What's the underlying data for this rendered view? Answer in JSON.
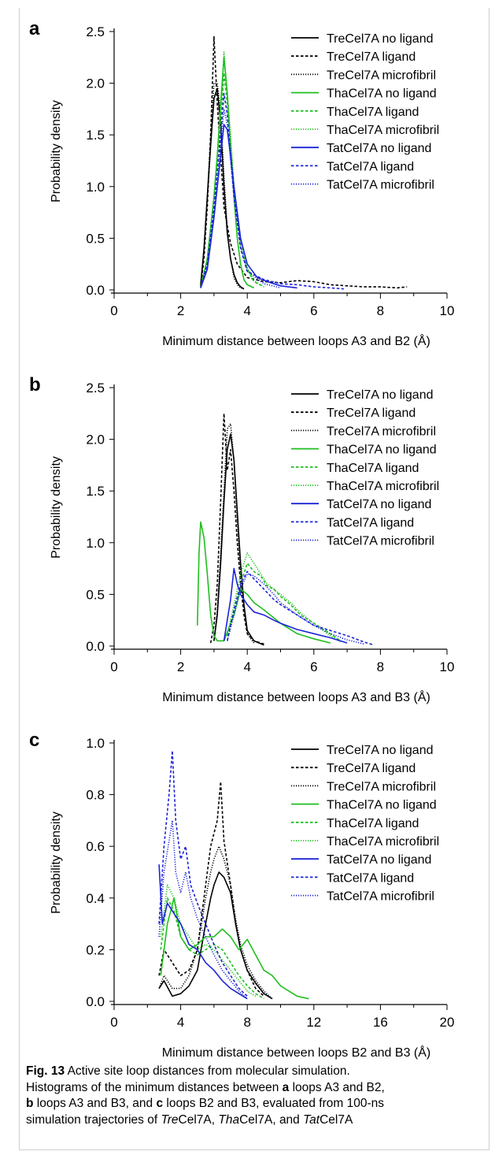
{
  "colors": {
    "tre": "#000000",
    "tha": "#1fbf1f",
    "tat": "#1c23d6"
  },
  "legend_labels": [
    "TreCel7A no ligand",
    "TreCel7A ligand",
    "TreCel7A microfibril",
    "ThaCel7A no ligand",
    "ThaCel7A ligand",
    "ThaCel7A microfibril",
    "TatCel7A no ligand",
    "TatCel7A ligand",
    "TatCel7A microfibril"
  ],
  "chart_data": [
    {
      "panel": "a",
      "type": "line",
      "xlabel": "Minimum distance between loops A3 and B2 (Å)",
      "ylabel": "Probability density",
      "xlim": [
        0,
        10
      ],
      "ylim": [
        0,
        2.5
      ],
      "xticks": [
        "0",
        "2",
        "4",
        "6",
        "8",
        "10"
      ],
      "yticks": [
        "0.0",
        "0.5",
        "1.0",
        "1.5",
        "2.0",
        "2.5"
      ],
      "legend": "top-right",
      "series": [
        {
          "name": "TreCel7A no ligand",
          "x": [
            2.6,
            2.7,
            2.8,
            2.9,
            3.0,
            3.1,
            3.2,
            3.3,
            3.4,
            3.5,
            3.6,
            3.7,
            3.8,
            3.9
          ],
          "y": [
            0.05,
            0.4,
            0.9,
            1.4,
            1.85,
            1.95,
            1.6,
            1.0,
            0.55,
            0.3,
            0.15,
            0.07,
            0.03,
            0.01
          ]
        },
        {
          "name": "TreCel7A ligand",
          "x": [
            2.6,
            2.7,
            2.8,
            2.9,
            3.0,
            3.1,
            3.2,
            3.3,
            3.5,
            3.7,
            4.0,
            4.5,
            5.0,
            5.5,
            6.0,
            6.5,
            7.0,
            7.5,
            8.0,
            8.5,
            8.8
          ],
          "y": [
            0.03,
            0.3,
            0.8,
            1.5,
            2.45,
            1.8,
            1.3,
            0.8,
            0.45,
            0.25,
            0.12,
            0.08,
            0.07,
            0.09,
            0.08,
            0.05,
            0.04,
            0.03,
            0.03,
            0.02,
            0.03
          ]
        },
        {
          "name": "TreCel7A microfibril",
          "x": [
            2.6,
            2.7,
            2.8,
            2.9,
            3.0,
            3.1,
            3.2,
            3.3,
            3.4,
            3.5,
            3.6,
            3.7,
            3.8,
            3.9
          ],
          "y": [
            0.05,
            0.35,
            0.9,
            1.5,
            2.0,
            2.0,
            1.7,
            1.1,
            0.6,
            0.3,
            0.12,
            0.05,
            0.02,
            0.01
          ]
        },
        {
          "name": "ThaCel7A no ligand",
          "x": [
            2.6,
            2.8,
            3.0,
            3.1,
            3.2,
            3.3,
            3.4,
            3.5,
            3.6,
            3.7,
            3.8,
            3.9,
            4.0,
            4.2
          ],
          "y": [
            0.02,
            0.3,
            0.9,
            1.3,
            1.8,
            2.25,
            1.9,
            1.4,
            0.9,
            0.5,
            0.25,
            0.1,
            0.05,
            0.02
          ]
        },
        {
          "name": "ThaCel7A ligand",
          "x": [
            2.6,
            2.8,
            3.0,
            3.2,
            3.3,
            3.4,
            3.5,
            3.6,
            3.8,
            4.0,
            4.2,
            4.5
          ],
          "y": [
            0.02,
            0.25,
            0.8,
            1.6,
            2.1,
            1.8,
            1.4,
            1.0,
            0.45,
            0.2,
            0.08,
            0.03
          ]
        },
        {
          "name": "ThaCel7A microfibril",
          "x": [
            2.6,
            2.8,
            3.0,
            3.2,
            3.3,
            3.4,
            3.5,
            3.6,
            3.8,
            4.0,
            4.2,
            4.5
          ],
          "y": [
            0.02,
            0.3,
            0.9,
            1.7,
            2.3,
            1.9,
            1.5,
            1.0,
            0.5,
            0.22,
            0.09,
            0.03
          ]
        },
        {
          "name": "TatCel7A no ligand",
          "x": [
            2.6,
            2.8,
            3.0,
            3.2,
            3.3,
            3.4,
            3.5,
            3.6,
            3.8,
            4.0,
            4.3,
            4.6,
            5.0,
            5.5
          ],
          "y": [
            0.02,
            0.2,
            0.7,
            1.3,
            1.6,
            1.55,
            1.3,
            1.0,
            0.5,
            0.25,
            0.12,
            0.08,
            0.04,
            0.02
          ]
        },
        {
          "name": "TatCel7A ligand",
          "x": [
            2.6,
            2.8,
            3.0,
            3.2,
            3.3,
            3.4,
            3.5,
            3.6,
            3.8,
            4.0,
            4.5,
            5.0,
            5.5,
            6.0,
            6.5,
            6.9
          ],
          "y": [
            0.02,
            0.25,
            0.8,
            1.5,
            1.9,
            1.7,
            1.3,
            0.9,
            0.4,
            0.18,
            0.1,
            0.06,
            0.05,
            0.03,
            0.02,
            0.01
          ]
        },
        {
          "name": "TatCel7A microfibril",
          "x": [
            2.6,
            2.8,
            3.0,
            3.2,
            3.3,
            3.4,
            3.5,
            3.6,
            3.8,
            4.0,
            4.5,
            5.0
          ],
          "y": [
            0.02,
            0.25,
            0.75,
            1.4,
            1.75,
            1.6,
            1.25,
            0.9,
            0.42,
            0.18,
            0.06,
            0.02
          ]
        }
      ]
    },
    {
      "panel": "b",
      "type": "line",
      "xlabel": "Minimum distance between loops A3 and B3 (Å)",
      "ylabel": "Probability density",
      "xlim": [
        0,
        10
      ],
      "ylim": [
        0,
        2.5
      ],
      "xticks": [
        "0",
        "2",
        "4",
        "6",
        "8",
        "10"
      ],
      "yticks": [
        "0.0",
        "0.5",
        "1.0",
        "1.5",
        "2.0",
        "2.5"
      ],
      "legend": "top-right",
      "series": [
        {
          "name": "TreCel7A no ligand",
          "x": [
            3.0,
            3.1,
            3.2,
            3.3,
            3.4,
            3.5,
            3.6,
            3.7,
            3.8,
            3.9,
            4.0,
            4.2,
            4.5
          ],
          "y": [
            0.05,
            0.3,
            0.8,
            1.4,
            1.9,
            2.05,
            1.8,
            1.3,
            0.8,
            0.4,
            0.15,
            0.05,
            0.01
          ]
        },
        {
          "name": "TreCel7A ligand",
          "x": [
            2.9,
            3.0,
            3.1,
            3.2,
            3.3,
            3.4,
            3.5,
            3.6,
            3.7,
            3.8,
            3.9,
            4.0,
            4.2,
            4.5
          ],
          "y": [
            0.03,
            0.2,
            0.6,
            1.4,
            2.25,
            1.7,
            1.9,
            1.5,
            1.0,
            0.6,
            0.3,
            0.12,
            0.05,
            0.02
          ]
        },
        {
          "name": "TreCel7A microfibril",
          "x": [
            3.0,
            3.1,
            3.2,
            3.3,
            3.4,
            3.5,
            3.6,
            3.7,
            3.8,
            3.9,
            4.0,
            4.2
          ],
          "y": [
            0.05,
            0.35,
            0.9,
            1.5,
            2.1,
            2.15,
            1.8,
            1.2,
            0.7,
            0.35,
            0.12,
            0.03
          ]
        },
        {
          "name": "ThaCel7A no ligand",
          "x": [
            2.5,
            2.55,
            2.6,
            2.7,
            2.8,
            2.9,
            3.0,
            3.1,
            3.3,
            3.6,
            3.8,
            4.0,
            4.2,
            4.5,
            5.0,
            5.5,
            6.0,
            6.5
          ],
          "y": [
            0.2,
            0.9,
            1.2,
            1.05,
            0.7,
            0.3,
            0.1,
            0.05,
            0.05,
            0.3,
            0.55,
            0.5,
            0.42,
            0.35,
            0.22,
            0.12,
            0.07,
            0.03
          ]
        },
        {
          "name": "ThaCel7A ligand",
          "x": [
            3.4,
            3.6,
            3.8,
            4.0,
            4.2,
            4.4,
            4.6,
            4.8,
            5.0,
            5.3,
            5.6,
            6.0,
            6.4,
            6.8
          ],
          "y": [
            0.1,
            0.35,
            0.6,
            0.8,
            0.72,
            0.68,
            0.58,
            0.55,
            0.48,
            0.4,
            0.3,
            0.22,
            0.14,
            0.05
          ]
        },
        {
          "name": "ThaCel7A microfibril",
          "x": [
            3.4,
            3.6,
            3.8,
            4.0,
            4.2,
            4.4,
            4.6,
            4.8,
            5.0,
            5.3,
            5.6,
            6.0,
            6.4,
            6.8
          ],
          "y": [
            0.1,
            0.4,
            0.7,
            0.9,
            0.8,
            0.7,
            0.6,
            0.55,
            0.5,
            0.42,
            0.32,
            0.22,
            0.12,
            0.04
          ]
        },
        {
          "name": "TatCel7A no ligand",
          "x": [
            3.3,
            3.5,
            3.6,
            3.7,
            3.8,
            4.0,
            4.2,
            4.5,
            4.8,
            5.0,
            5.5,
            6.0,
            6.5,
            7.0
          ],
          "y": [
            0.05,
            0.45,
            0.75,
            0.6,
            0.5,
            0.4,
            0.33,
            0.3,
            0.25,
            0.22,
            0.16,
            0.12,
            0.08,
            0.03
          ]
        },
        {
          "name": "TatCel7A ligand",
          "x": [
            3.4,
            3.6,
            3.8,
            4.0,
            4.2,
            4.5,
            4.8,
            5.0,
            5.5,
            6.0,
            6.5,
            7.0,
            7.5,
            7.8
          ],
          "y": [
            0.05,
            0.35,
            0.6,
            0.72,
            0.65,
            0.55,
            0.45,
            0.4,
            0.3,
            0.2,
            0.15,
            0.1,
            0.04,
            0.01
          ]
        },
        {
          "name": "TatCel7A microfibril",
          "x": [
            3.4,
            3.6,
            3.8,
            4.0,
            4.2,
            4.5,
            4.8,
            5.0,
            5.5,
            6.0,
            6.5,
            7.0,
            7.5
          ],
          "y": [
            0.05,
            0.3,
            0.55,
            0.7,
            0.68,
            0.6,
            0.5,
            0.42,
            0.3,
            0.2,
            0.12,
            0.06,
            0.02
          ]
        }
      ]
    },
    {
      "panel": "c",
      "type": "line",
      "xlabel": "Minimum distance between loops B2 and B3 (Å)",
      "ylabel": "Probability density",
      "xlim": [
        0,
        20
      ],
      "ylim": [
        0,
        1.0
      ],
      "xticks": [
        "0",
        "4",
        "8",
        "12",
        "16",
        "20"
      ],
      "yticks": [
        "0.0",
        "0.2",
        "0.4",
        "0.6",
        "0.8",
        "1.0"
      ],
      "legend": "top-right",
      "series": [
        {
          "name": "TreCel7A no ligand",
          "x": [
            2.7,
            3.0,
            3.5,
            4.0,
            4.5,
            5.0,
            5.5,
            5.8,
            6.0,
            6.3,
            6.6,
            7.0,
            7.3,
            7.6,
            8.0,
            8.5,
            9.0,
            9.5
          ],
          "y": [
            0.05,
            0.08,
            0.02,
            0.03,
            0.06,
            0.12,
            0.3,
            0.4,
            0.45,
            0.5,
            0.48,
            0.42,
            0.3,
            0.2,
            0.12,
            0.07,
            0.03,
            0.01
          ]
        },
        {
          "name": "TreCel7A ligand",
          "x": [
            2.7,
            3.0,
            3.5,
            4.0,
            4.5,
            5.0,
            5.5,
            5.8,
            6.0,
            6.2,
            6.4,
            6.6,
            7.0,
            7.3,
            7.6,
            8.0,
            8.5,
            9.0
          ],
          "y": [
            0.1,
            0.2,
            0.15,
            0.1,
            0.12,
            0.2,
            0.45,
            0.6,
            0.65,
            0.7,
            0.85,
            0.62,
            0.45,
            0.3,
            0.2,
            0.12,
            0.05,
            0.02
          ]
        },
        {
          "name": "TreCel7A microfibril",
          "x": [
            2.7,
            3.0,
            3.5,
            4.0,
            4.5,
            5.0,
            5.5,
            5.8,
            6.0,
            6.3,
            6.6,
            7.0,
            7.3,
            7.6,
            8.0,
            8.5,
            9.0,
            9.5
          ],
          "y": [
            0.05,
            0.1,
            0.05,
            0.05,
            0.1,
            0.2,
            0.4,
            0.5,
            0.55,
            0.6,
            0.55,
            0.45,
            0.32,
            0.22,
            0.14,
            0.08,
            0.04,
            0.01
          ]
        },
        {
          "name": "ThaCel7A no ligand",
          "x": [
            2.8,
            3.2,
            3.6,
            4.0,
            4.5,
            5.0,
            5.5,
            6.0,
            6.5,
            7.0,
            7.5,
            8.0,
            8.5,
            9.0,
            9.5,
            10.0,
            10.5,
            11.0,
            11.7
          ],
          "y": [
            0.1,
            0.3,
            0.4,
            0.25,
            0.2,
            0.22,
            0.25,
            0.25,
            0.28,
            0.25,
            0.2,
            0.24,
            0.18,
            0.12,
            0.1,
            0.06,
            0.04,
            0.02,
            0.01
          ]
        },
        {
          "name": "ThaCel7A ligand",
          "x": [
            2.8,
            3.2,
            3.6,
            4.0,
            4.5,
            5.0,
            5.5,
            6.0,
            6.5,
            7.0,
            7.5,
            8.0,
            8.5,
            9.0
          ],
          "y": [
            0.2,
            0.4,
            0.35,
            0.25,
            0.2,
            0.18,
            0.2,
            0.22,
            0.2,
            0.15,
            0.1,
            0.06,
            0.03,
            0.01
          ]
        },
        {
          "name": "ThaCel7A microfibril",
          "x": [
            2.8,
            3.2,
            3.6,
            4.0,
            4.5,
            5.0,
            5.5,
            6.0,
            6.5,
            7.0,
            7.5,
            8.0,
            8.5
          ],
          "y": [
            0.25,
            0.45,
            0.4,
            0.3,
            0.25,
            0.2,
            0.22,
            0.2,
            0.16,
            0.12,
            0.08,
            0.04,
            0.02
          ]
        },
        {
          "name": "TatCel7A no ligand",
          "x": [
            2.7,
            2.9,
            3.2,
            3.5,
            4.0,
            4.5,
            5.0,
            5.5,
            6.0,
            6.5,
            7.0,
            7.5,
            8.0
          ],
          "y": [
            0.53,
            0.3,
            0.38,
            0.35,
            0.3,
            0.22,
            0.2,
            0.15,
            0.12,
            0.08,
            0.05,
            0.03,
            0.01
          ]
        },
        {
          "name": "TatCel7A ligand",
          "x": [
            2.7,
            3.0,
            3.3,
            3.5,
            3.7,
            4.0,
            4.3,
            4.6,
            5.0,
            5.5,
            6.0,
            6.5,
            7.0,
            7.5,
            8.0
          ],
          "y": [
            0.3,
            0.6,
            0.8,
            0.97,
            0.7,
            0.55,
            0.6,
            0.45,
            0.38,
            0.3,
            0.22,
            0.15,
            0.1,
            0.05,
            0.02
          ]
        },
        {
          "name": "TatCel7A microfibril",
          "x": [
            2.7,
            3.0,
            3.3,
            3.5,
            3.7,
            4.0,
            4.3,
            4.6,
            5.0,
            5.5,
            6.0,
            6.5,
            7.0,
            7.5,
            8.0
          ],
          "y": [
            0.25,
            0.5,
            0.62,
            0.7,
            0.5,
            0.42,
            0.5,
            0.4,
            0.32,
            0.25,
            0.18,
            0.12,
            0.08,
            0.04,
            0.01
          ]
        }
      ]
    }
  ],
  "caption": {
    "fig_label": "Fig. 13",
    "title": "Active site loop distances from molecular simulation.",
    "s1": "Histograms of the minimum distances between",
    "a": "a",
    "t_a": "loops A3 and B2,",
    "b": "b",
    "t_b": "loops A3 and B3, and",
    "c": "c",
    "t_c": "loops B2 and B3, evaluated from 100-ns",
    "t_d": "simulation trajectories of",
    "tre_it": "Tre",
    "tre_rest": "Cel7A,",
    "tha_it": "Tha",
    "tha_rest": "Cel7A, and",
    "tat_it": "Tat",
    "tat_rest": "Cel7A"
  }
}
